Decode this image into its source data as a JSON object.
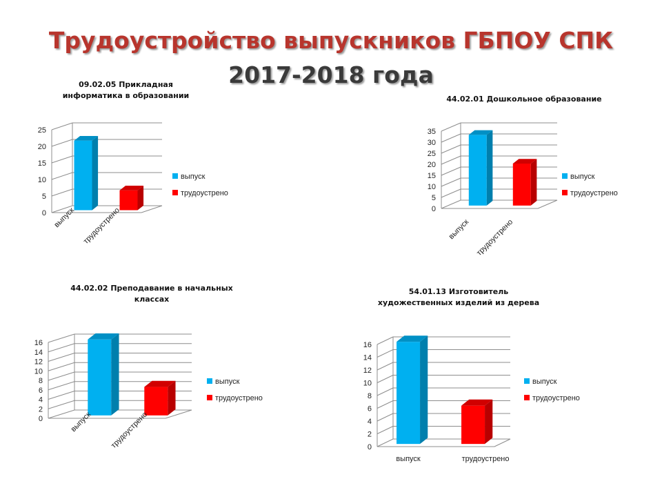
{
  "page_title": {
    "line1": "Трудоустройство выпускников ГБПОУ СПК",
    "line2": "2017-2018 года"
  },
  "colors": {
    "release": "#00b0f0",
    "employed": "#ff0000",
    "title": "#b8352d",
    "grid": "#8c8c8c"
  },
  "chart_data": [
    {
      "type": "bar",
      "title": "09.02.05 Прикладная информатика в образовании",
      "categories": [
        "выпуск",
        "трудоустрено"
      ],
      "values": [
        21,
        6
      ],
      "ylim": [
        0,
        25
      ],
      "yticks": [
        0,
        5,
        10,
        15,
        20,
        25
      ],
      "legend": [
        "выпуск",
        "трудоустрено"
      ],
      "legend_position": "right",
      "grid": true
    },
    {
      "type": "bar",
      "title": "44.02.01 Дошкольное образование",
      "categories": [
        "выпуск",
        "трудоустрено"
      ],
      "values": [
        32,
        19
      ],
      "ylim": [
        0,
        35
      ],
      "yticks": [
        0,
        5,
        10,
        15,
        20,
        25,
        30,
        35
      ],
      "legend": [
        "выпуск",
        "трудоустрено"
      ],
      "legend_position": "right",
      "grid": true
    },
    {
      "type": "bar",
      "title": "44.02.02 Преподавание в начальных классах",
      "categories": [
        "выпуск",
        "трудоустрено"
      ],
      "values": [
        16,
        6
      ],
      "ylim": [
        0,
        16
      ],
      "yticks": [
        0,
        2,
        4,
        6,
        8,
        10,
        12,
        14,
        16
      ],
      "legend": [
        "выпуск",
        "трудоустрено"
      ],
      "legend_position": "right",
      "grid": true
    },
    {
      "type": "bar",
      "title": "54.01.13 Изготовитель художественных изделий из дерева",
      "categories": [
        "выпуск",
        "трудоустрено"
      ],
      "values": [
        16,
        6
      ],
      "ylim": [
        0,
        16
      ],
      "yticks": [
        0,
        2,
        4,
        6,
        8,
        10,
        12,
        14,
        16
      ],
      "legend": [
        "выпуск",
        "трудоустрено"
      ],
      "legend_position": "right",
      "grid": true
    }
  ]
}
